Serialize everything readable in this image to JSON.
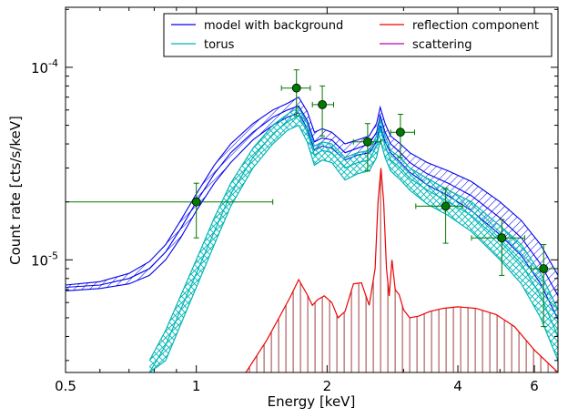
{
  "chart_data": {
    "type": "line",
    "title": "",
    "xlabel": "Energy [keV]",
    "ylabel": "Count rate [cts/s/keV]",
    "x_scale": "log",
    "y_scale": "log",
    "xlim": [
      0.5,
      6.8
    ],
    "ylim": [
      2.6e-06,
      0.000205
    ],
    "x_ticks": [
      {
        "value": 0.5,
        "label": "0.5"
      },
      {
        "value": 1,
        "label": "1"
      },
      {
        "value": 2,
        "label": "2"
      },
      {
        "value": 4,
        "label": "4"
      },
      {
        "value": 6,
        "label": "6"
      }
    ],
    "y_ticks": [
      {
        "value": 1e-05,
        "base": "10",
        "exp": "-5"
      },
      {
        "value": 0.0001,
        "base": "10",
        "exp": "-4"
      }
    ],
    "grid": false,
    "legend": {
      "placement": "top-right",
      "entries": [
        {
          "label": "model with background",
          "color": "#0000ee"
        },
        {
          "label": "reflection component",
          "color": "#ee0000"
        },
        {
          "label": "torus",
          "color": "#00b5b5"
        },
        {
          "label": "scattering",
          "color": "#bb00bb"
        }
      ]
    },
    "series": [
      {
        "name": "model with background",
        "color": "#0000ee",
        "x": [
          0.5,
          0.6,
          0.7,
          0.78,
          0.85,
          0.92,
          1.0,
          1.1,
          1.2,
          1.35,
          1.5,
          1.62,
          1.72,
          1.8,
          1.87,
          1.95,
          2.05,
          2.2,
          2.35,
          2.5,
          2.6,
          2.65,
          2.72,
          2.8,
          2.95,
          3.1,
          3.4,
          3.8,
          4.3,
          5.0,
          5.6,
          6.2,
          6.8
        ],
        "y": [
          7.2e-06,
          7.4e-06,
          8e-06,
          9e-06,
          1.1e-05,
          1.45e-05,
          2e-05,
          2.8e-05,
          3.6e-05,
          4.6e-05,
          5.5e-05,
          6e-05,
          6.3e-05,
          5.3e-05,
          4.1e-05,
          4.3e-05,
          4.2e-05,
          3.6e-05,
          3.8e-05,
          4e-05,
          4.6e-05,
          5.6e-05,
          4.6e-05,
          4e-05,
          3.6e-05,
          3.2e-05,
          2.8e-05,
          2.5e-05,
          2.15e-05,
          1.65e-05,
          1.3e-05,
          9.5e-06,
          6.5e-06
        ],
        "band_low": [
          6.9e-06,
          7.1e-06,
          7.5e-06,
          8.3e-06,
          1e-05,
          1.3e-05,
          1.8e-05,
          2.5e-05,
          3.2e-05,
          4.2e-05,
          5e-05,
          5.5e-05,
          5.8e-05,
          4.8e-05,
          3.7e-05,
          3.9e-05,
          3.8e-05,
          3.3e-05,
          3.5e-05,
          3.6e-05,
          4.1e-05,
          5e-05,
          4.1e-05,
          3.6e-05,
          3.2e-05,
          2.85e-05,
          2.45e-05,
          2.15e-05,
          1.8e-05,
          1.35e-05,
          1.05e-05,
          7.5e-06,
          4.9e-06
        ],
        "band_high": [
          7.4e-06,
          7.7e-06,
          8.5e-06,
          9.8e-06,
          1.2e-05,
          1.6e-05,
          2.2e-05,
          3.1e-05,
          4e-05,
          5.1e-05,
          6e-05,
          6.5e-05,
          7e-05,
          5.9e-05,
          4.6e-05,
          4.8e-05,
          4.6e-05,
          4e-05,
          4.2e-05,
          4.4e-05,
          5.1e-05,
          6.2e-05,
          5.1e-05,
          4.4e-05,
          4e-05,
          3.6e-05,
          3.2e-05,
          2.9e-05,
          2.55e-05,
          2e-05,
          1.6e-05,
          1.2e-05,
          8.3e-06
        ]
      },
      {
        "name": "torus",
        "color": "#00b5b5",
        "x": [
          0.78,
          0.85,
          0.92,
          1.0,
          1.1,
          1.2,
          1.35,
          1.5,
          1.62,
          1.72,
          1.8,
          1.87,
          1.95,
          2.05,
          2.2,
          2.35,
          2.5,
          2.6,
          2.65,
          2.72,
          2.8,
          2.95,
          3.1,
          3.4,
          3.8,
          4.3,
          5.0,
          5.6,
          6.2,
          6.8
        ],
        "y": [
          2.6e-06,
          3.6e-06,
          5.5e-06,
          8.5e-06,
          1.4e-05,
          2.2e-05,
          3.4e-05,
          4.5e-05,
          5.2e-05,
          5.6e-05,
          4.6e-05,
          3.5e-05,
          3.7e-05,
          3.6e-05,
          3e-05,
          3.2e-05,
          3.3e-05,
          3.9e-05,
          4.8e-05,
          3.9e-05,
          3.3e-05,
          3e-05,
          2.65e-05,
          2.3e-05,
          2e-05,
          1.7e-05,
          1.25e-05,
          9.5e-06,
          6.5e-06,
          4e-06
        ],
        "band_low": [
          2.6e-06,
          3e-06,
          4.6e-06,
          7.2e-06,
          1.2e-05,
          1.9e-05,
          3e-05,
          4e-05,
          4.7e-05,
          5e-05,
          4.1e-05,
          3.1e-05,
          3.3e-05,
          3.2e-05,
          2.6e-05,
          2.8e-05,
          2.9e-05,
          3.4e-05,
          4.2e-05,
          3.4e-05,
          2.9e-05,
          2.6e-05,
          2.3e-05,
          1.95e-05,
          1.7e-05,
          1.4e-05,
          1e-05,
          7.5e-06,
          5e-06,
          3e-06
        ],
        "band_high": [
          3e-06,
          4.3e-06,
          6.5e-06,
          1e-05,
          1.65e-05,
          2.5e-05,
          3.8e-05,
          5e-05,
          5.7e-05,
          6.2e-05,
          5.1e-05,
          3.9e-05,
          4.1e-05,
          4e-05,
          3.4e-05,
          3.6e-05,
          3.7e-05,
          4.4e-05,
          5.4e-05,
          4.4e-05,
          3.7e-05,
          3.4e-05,
          3e-05,
          2.65e-05,
          2.3e-05,
          2e-05,
          1.5e-05,
          1.2e-05,
          8.5e-06,
          5.5e-06
        ]
      },
      {
        "name": "reflection component",
        "color": "#ee0000",
        "x": [
          1.3,
          1.45,
          1.55,
          1.65,
          1.72,
          1.8,
          1.85,
          1.9,
          1.97,
          2.05,
          2.12,
          2.2,
          2.3,
          2.4,
          2.5,
          2.58,
          2.62,
          2.66,
          2.7,
          2.74,
          2.78,
          2.82,
          2.87,
          2.93,
          3.0,
          3.1,
          3.25,
          3.45,
          3.7,
          4.0,
          4.4,
          4.9,
          5.4,
          6.0,
          6.8
        ],
        "y": [
          2.6e-06,
          3.8e-06,
          5e-06,
          6.5e-06,
          7.9e-06,
          6.6e-06,
          5.8e-06,
          6.2e-06,
          6.5e-06,
          6e-06,
          5e-06,
          5.4e-06,
          7.5e-06,
          7.6e-06,
          5.8e-06,
          9e-06,
          2e-05,
          3e-05,
          2e-05,
          9e-06,
          6.5e-06,
          1e-05,
          7e-06,
          6.6e-06,
          5.5e-06,
          5e-06,
          5.1e-06,
          5.4e-06,
          5.6e-06,
          5.7e-06,
          5.6e-06,
          5.2e-06,
          4.5e-06,
          3.4e-06,
          2.6e-06
        ]
      }
    ],
    "data_points": {
      "color": "#007a00",
      "points": [
        {
          "x": 1.0,
          "y": 2e-05,
          "xerr": [
            0.5,
            1.5
          ],
          "yerr": [
            1.3e-05,
            2.5e-05
          ]
        },
        {
          "x": 1.7,
          "y": 7.8e-05,
          "xerr": [
            1.57,
            1.83
          ],
          "yerr": [
            5.6e-05,
            9.7e-05
          ]
        },
        {
          "x": 1.95,
          "y": 6.4e-05,
          "xerr": [
            1.85,
            2.07
          ],
          "yerr": [
            4.4e-05,
            8e-05
          ]
        },
        {
          "x": 2.48,
          "y": 4.1e-05,
          "xerr": [
            2.3,
            2.66
          ],
          "yerr": [
            2.9e-05,
            5.1e-05
          ]
        },
        {
          "x": 2.95,
          "y": 4.6e-05,
          "xerr": [
            2.8,
            3.18
          ],
          "yerr": [
            3.4e-05,
            5.7e-05
          ]
        },
        {
          "x": 3.75,
          "y": 1.9e-05,
          "xerr": [
            3.2,
            4.1
          ],
          "yerr": [
            1.22e-05,
            2.35e-05
          ]
        },
        {
          "x": 5.05,
          "y": 1.3e-05,
          "xerr": [
            4.3,
            5.7
          ],
          "yerr": [
            8.3e-06,
            1.62e-05
          ]
        },
        {
          "x": 6.3,
          "y": 9e-06,
          "xerr": [
            5.9,
            6.8
          ],
          "yerr": [
            4.5e-06,
            1.2e-05
          ]
        }
      ]
    }
  }
}
